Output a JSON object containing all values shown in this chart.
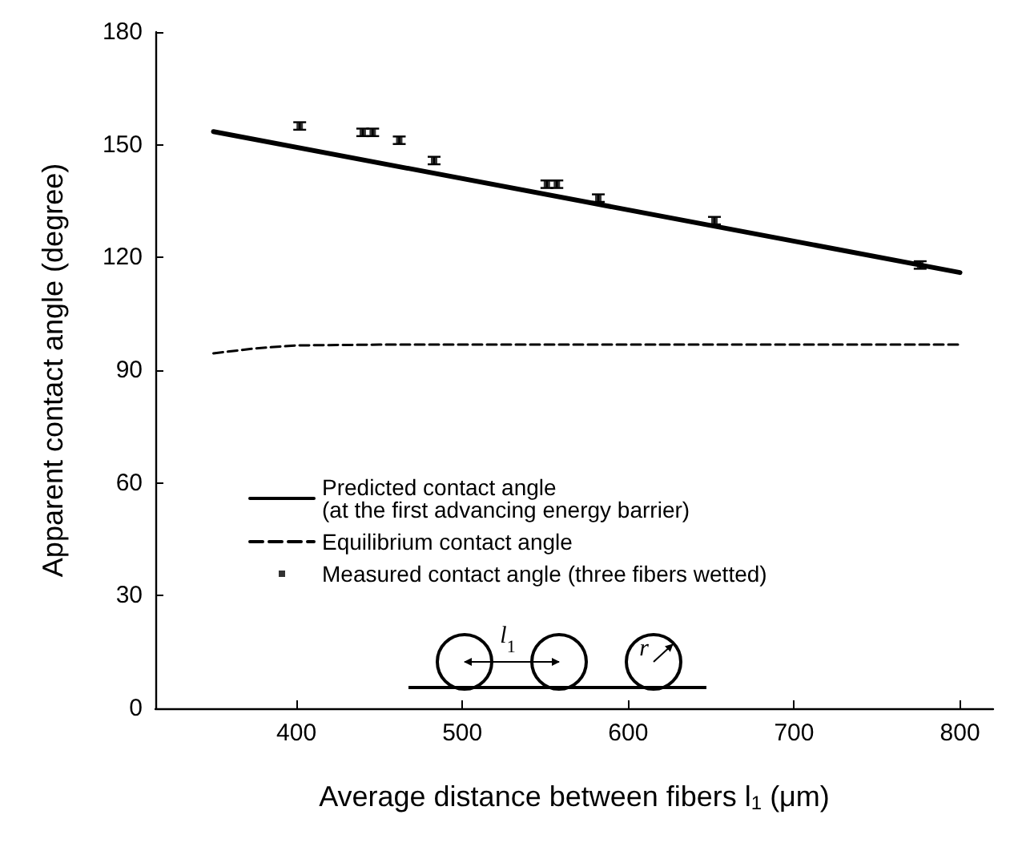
{
  "chart_data": {
    "type": "line",
    "xlabel": "Average distance between fibers l$_{1}$ (μm)",
    "ylabel": "Apparent contact angle (degree)",
    "xlim": [
      315,
      820
    ],
    "xticks": [
      400,
      500,
      600,
      700,
      800
    ],
    "ylim": [
      0,
      180
    ],
    "yticks": [
      0,
      30,
      60,
      90,
      120,
      150,
      180
    ],
    "grid": false,
    "legend": "left",
    "series": [
      {
        "name": "Predicted contact angle\n(at the first advancing energy barrier)",
        "color": "#000000",
        "line_style": "solid",
        "marker": "none",
        "x": [
          350,
          800
        ],
        "values": [
          153.5,
          116
        ]
      },
      {
        "name": "Equilibrium contact angle",
        "color": "#000000",
        "line_style": "dashed",
        "marker": "none",
        "x": [
          350,
          375,
          400,
          450,
          800
        ],
        "values": [
          94.5,
          95.8,
          96.6,
          96.8,
          96.8
        ]
      },
      {
        "name": "Measured contact angle (three fibers wetted)",
        "type": "scatter",
        "color": "#000000",
        "marker": "square",
        "x": [
          402,
          440,
          446,
          462,
          483,
          551,
          557,
          582,
          652,
          776
        ],
        "values": [
          155,
          153.3,
          153.3,
          151.2,
          145.8,
          139.5,
          139.5,
          135.8,
          129.8,
          118
        ],
        "errors": [
          1,
          1,
          1,
          1,
          1,
          1,
          1,
          1,
          1,
          1
        ]
      }
    ],
    "annotations": [
      "l$_{1}$",
      "r"
    ]
  }
}
